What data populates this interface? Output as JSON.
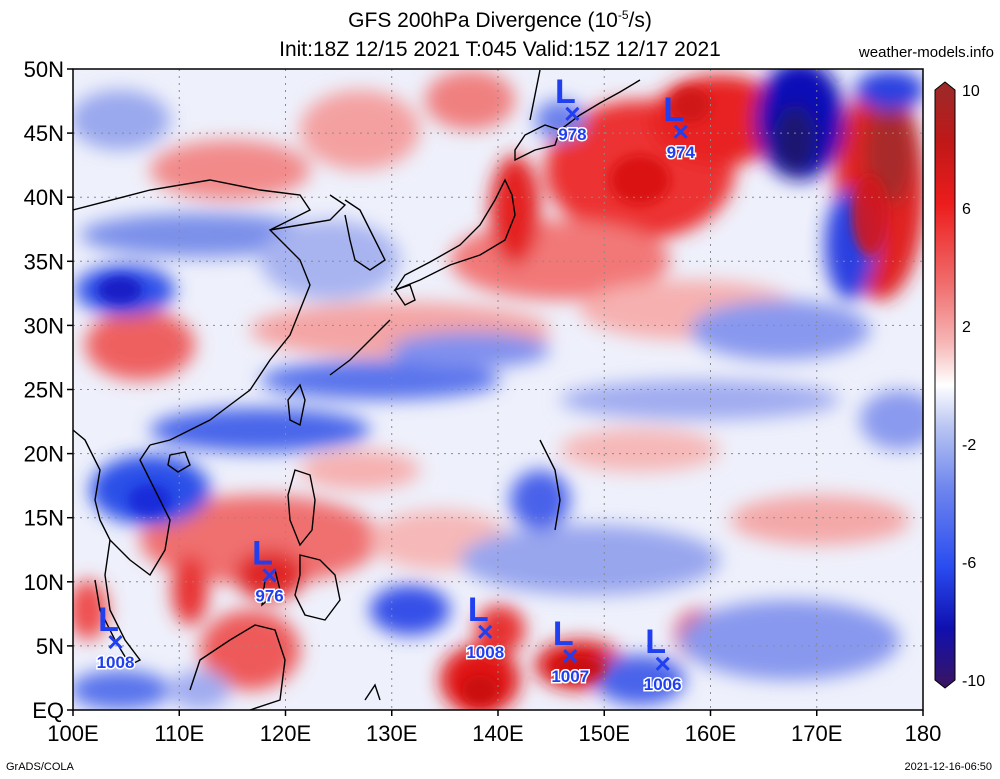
{
  "header": {
    "title": "GFS 200hPa Divergence (10",
    "title_exp": "-5",
    "title_unit": "/s)",
    "subtitle": "Init:18Z 12/15 2021 T:045 Valid:15Z 12/17 2021",
    "site": "weather-models.info"
  },
  "footer": {
    "left": "GrADS/COLA",
    "right": "2021-12-16-06:50"
  },
  "map": {
    "lat_labels": [
      "50N",
      "45N",
      "40N",
      "35N",
      "30N",
      "25N",
      "20N",
      "15N",
      "10N",
      "5N",
      "EQ"
    ],
    "lon_labels": [
      "100E",
      "110E",
      "120E",
      "130E",
      "140E",
      "150E",
      "160E",
      "170E",
      "180"
    ],
    "lows": [
      {
        "letter": "L",
        "pressure": "978",
        "lon": 147.0,
        "lat": 46.5
      },
      {
        "letter": "L",
        "pressure": "974",
        "lon": 157.2,
        "lat": 45.1
      },
      {
        "letter": "L",
        "pressure": "976",
        "lon": 118.5,
        "lat": 10.5
      },
      {
        "letter": "L",
        "pressure": "1008",
        "lon": 104.0,
        "lat": 5.3
      },
      {
        "letter": "L",
        "pressure": "1008",
        "lon": 138.8,
        "lat": 6.1
      },
      {
        "letter": "L",
        "pressure": "1007",
        "lon": 146.8,
        "lat": 4.2
      },
      {
        "letter": "L",
        "pressure": "1006",
        "lon": 155.5,
        "lat": 3.6
      }
    ]
  },
  "colorbar": {
    "labels": [
      "10",
      "6",
      "2",
      "-2",
      "-6",
      "-10"
    ],
    "colors": [
      "#3a1560",
      "#1010b0",
      "#2a4cf0",
      "#6f86ee",
      "#b8c4f2",
      "#ffffff",
      "#f4b4b4",
      "#f06b6b",
      "#ec1c1c",
      "#c01818",
      "#962a2a"
    ]
  }
}
